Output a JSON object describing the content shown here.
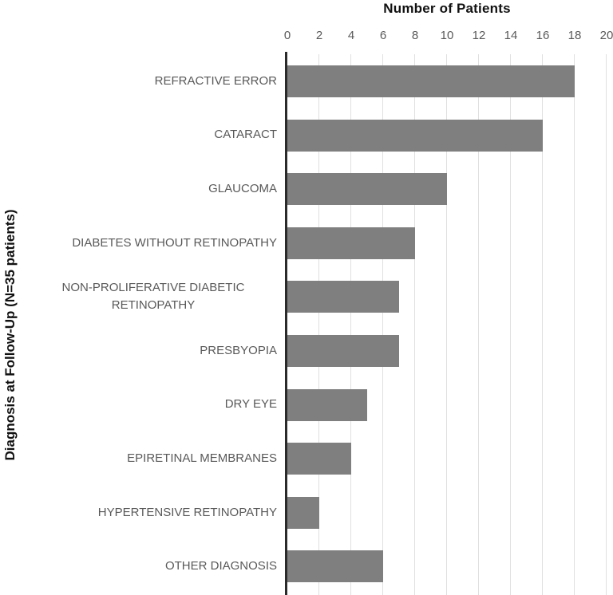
{
  "chart_data": {
    "type": "bar",
    "orientation": "horizontal",
    "title": "Number of Patients",
    "ylabel": "Diagnosis at Follow-Up (N=35 patients)",
    "xlabel": "",
    "categories": [
      "REFRACTIVE ERROR",
      "CATARACT",
      "GLAUCOMA",
      "DIABETES WITHOUT RETINOPATHY",
      "NON-PROLIFERATIVE DIABETIC RETINOPATHY",
      "PRESBYOPIA",
      "DRY EYE",
      "EPIRETINAL MEMBRANES",
      "HYPERTENSIVE RETINOPATHY",
      "OTHER DIAGNOSIS"
    ],
    "values": [
      18,
      16,
      10,
      8,
      7,
      7,
      5,
      4,
      2,
      6
    ],
    "xlim": [
      0,
      20
    ],
    "xticks": [
      0,
      2,
      4,
      6,
      8,
      10,
      12,
      14,
      16,
      18,
      20
    ],
    "grid": true,
    "legend": false,
    "colors": {
      "bar": "#7f7f7f",
      "gridline": "#e0e0e0",
      "axis": "#2b2b2b",
      "label": "#595959",
      "title": "#111111"
    }
  }
}
